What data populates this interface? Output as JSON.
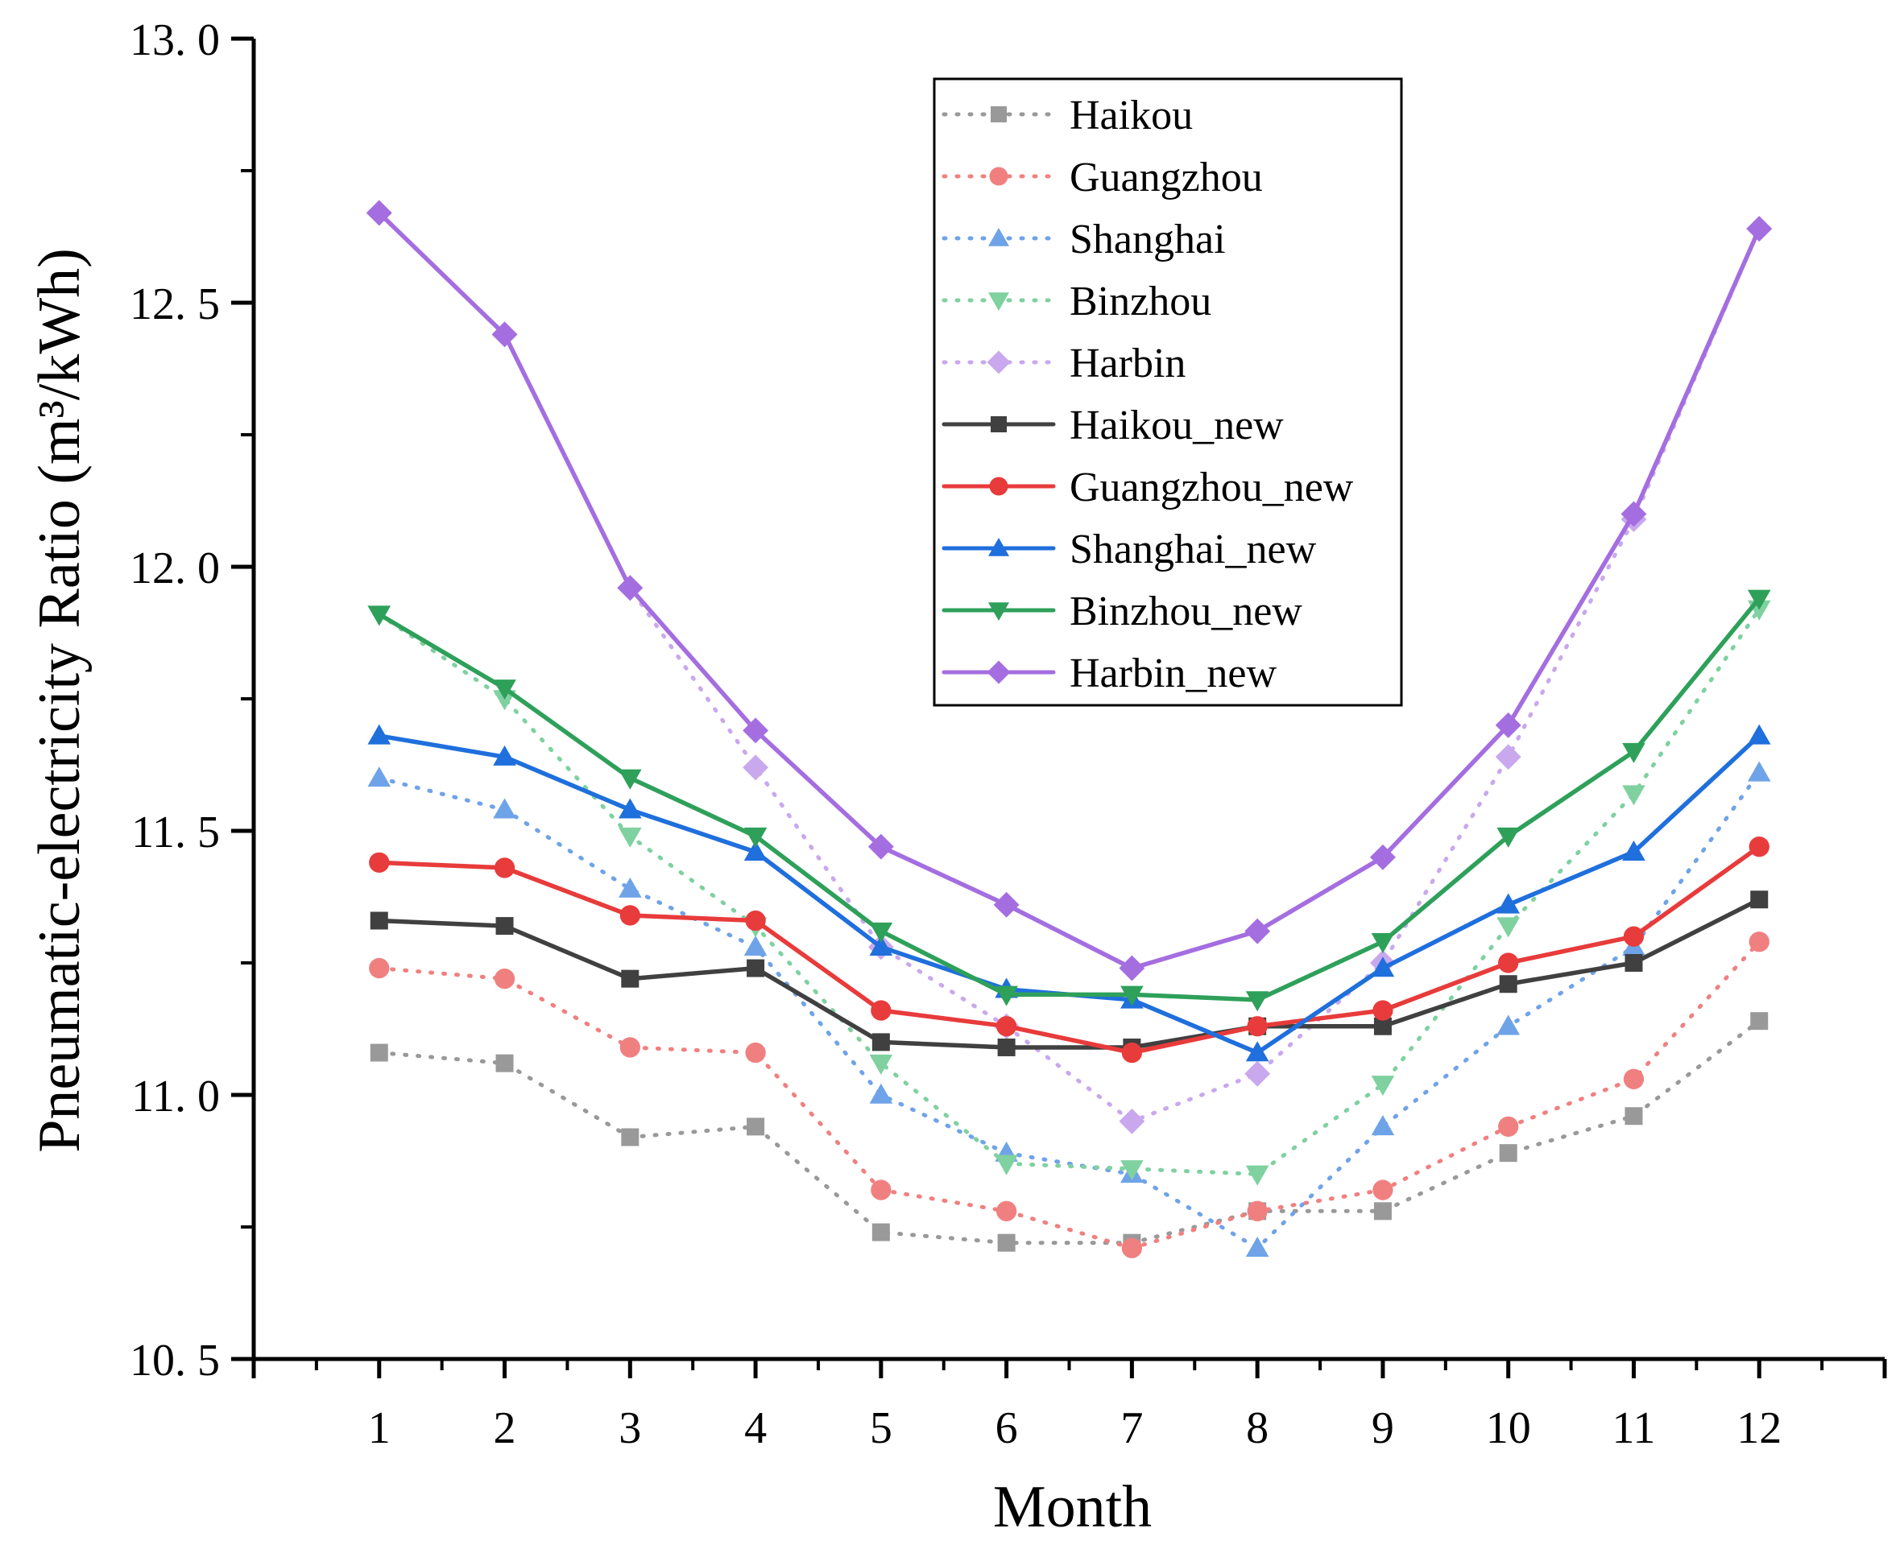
{
  "chart_data": {
    "type": "line",
    "xlabel": "Month",
    "ylabel": "Pneumatic-electricity Ratio (m³/kWh)",
    "x": [
      1,
      2,
      3,
      4,
      5,
      6,
      7,
      8,
      9,
      10,
      11,
      12
    ],
    "xlim": [
      0,
      13
    ],
    "ylim": [
      10.5,
      13.0
    ],
    "yticks": [
      10.5,
      11.0,
      11.5,
      12.0,
      12.5,
      13.0
    ],
    "ytick_labels": [
      "10. 5",
      "11. 0",
      "11. 5",
      "12. 0",
      "12. 5",
      "13. 0"
    ],
    "xtick_labels": [
      "1",
      "2",
      "3",
      "4",
      "5",
      "6",
      "7",
      "8",
      "9",
      "10",
      "11",
      "12"
    ],
    "grid": false,
    "legend_position": "top-center",
    "series": [
      {
        "name": "Haikou",
        "color": "#999999",
        "marker": "square",
        "style": "dotted",
        "values": [
          11.08,
          11.06,
          10.92,
          10.94,
          10.74,
          10.72,
          10.72,
          10.78,
          10.78,
          10.89,
          10.96,
          11.14
        ]
      },
      {
        "name": "Guangzhou",
        "color": "#f08080",
        "marker": "circle",
        "style": "dotted",
        "values": [
          11.24,
          11.22,
          11.09,
          11.08,
          10.82,
          10.78,
          10.71,
          10.78,
          10.82,
          10.94,
          11.03,
          11.29
        ]
      },
      {
        "name": "Shanghai",
        "color": "#6fa3e8",
        "marker": "triangle-up",
        "style": "dotted",
        "values": [
          11.6,
          11.54,
          11.39,
          11.28,
          11.0,
          10.89,
          10.85,
          10.71,
          10.94,
          11.13,
          11.28,
          11.61
        ]
      },
      {
        "name": "Binzhou",
        "color": "#7fd1a0",
        "marker": "triangle-down",
        "style": "dotted",
        "values": [
          11.91,
          11.75,
          11.49,
          11.32,
          11.06,
          10.87,
          10.86,
          10.85,
          11.02,
          11.32,
          11.57,
          11.92
        ]
      },
      {
        "name": "Harbin",
        "color": "#c9a8ee",
        "marker": "diamond",
        "style": "dotted",
        "values": [
          12.67,
          12.44,
          11.96,
          11.62,
          11.28,
          11.13,
          10.95,
          11.04,
          11.25,
          11.64,
          12.09,
          12.64
        ]
      },
      {
        "name": "Haikou_new",
        "color": "#404040",
        "marker": "square",
        "style": "solid",
        "values": [
          11.33,
          11.32,
          11.22,
          11.24,
          11.1,
          11.09,
          11.09,
          11.13,
          11.13,
          11.21,
          11.25,
          11.37
        ]
      },
      {
        "name": "Guangzhou_new",
        "color": "#e83b3b",
        "marker": "circle",
        "style": "solid",
        "values": [
          11.44,
          11.43,
          11.34,
          11.33,
          11.16,
          11.13,
          11.08,
          11.13,
          11.16,
          11.25,
          11.3,
          11.47
        ]
      },
      {
        "name": "Shanghai_new",
        "color": "#1f6fdc",
        "marker": "triangle-up",
        "style": "solid",
        "values": [
          11.68,
          11.64,
          11.54,
          11.46,
          11.28,
          11.2,
          11.18,
          11.08,
          11.24,
          11.36,
          11.46,
          11.68
        ]
      },
      {
        "name": "Binzhou_new",
        "color": "#2ea05a",
        "marker": "triangle-down",
        "style": "solid",
        "values": [
          11.91,
          11.77,
          11.6,
          11.49,
          11.31,
          11.19,
          11.19,
          11.18,
          11.29,
          11.49,
          11.65,
          11.94
        ]
      },
      {
        "name": "Harbin_new",
        "color": "#a46ee0",
        "marker": "diamond",
        "style": "solid",
        "values": [
          12.67,
          12.44,
          11.96,
          11.69,
          11.47,
          11.36,
          11.24,
          11.31,
          11.45,
          11.7,
          12.1,
          12.64
        ]
      }
    ]
  }
}
